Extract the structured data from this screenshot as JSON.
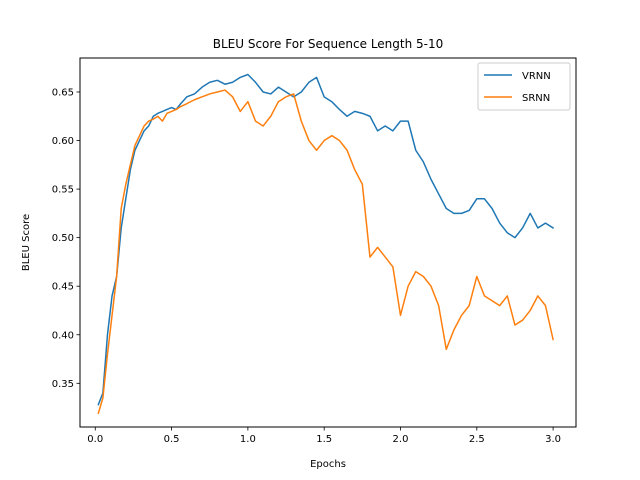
{
  "chart_data": {
    "type": "line",
    "title": "BLEU Score For Sequence Length 5-10",
    "xlabel": "Epochs",
    "ylabel": "BLEU Score",
    "xlim": [
      -0.1,
      3.15
    ],
    "ylim": [
      0.305,
      0.685
    ],
    "xticks": [
      0.0,
      0.5,
      1.0,
      1.5,
      2.0,
      2.5,
      3.0
    ],
    "xtick_labels": [
      "0.0",
      "0.5",
      "1.0",
      "1.5",
      "2.0",
      "2.5",
      "3.0"
    ],
    "yticks": [
      0.35,
      0.4,
      0.45,
      0.5,
      0.55,
      0.6,
      0.65
    ],
    "ytick_labels": [
      "0.35",
      "0.40",
      "0.45",
      "0.50",
      "0.55",
      "0.60",
      "0.65"
    ],
    "grid": false,
    "legend_position": "top-right",
    "series": [
      {
        "name": "VRNN",
        "color": "#1f77b4",
        "x": [
          0.02,
          0.05,
          0.08,
          0.11,
          0.14,
          0.17,
          0.2,
          0.23,
          0.26,
          0.29,
          0.32,
          0.35,
          0.38,
          0.41,
          0.44,
          0.47,
          0.5,
          0.53,
          0.56,
          0.6,
          0.65,
          0.7,
          0.75,
          0.8,
          0.85,
          0.9,
          0.95,
          1.0,
          1.05,
          1.1,
          1.15,
          1.2,
          1.25,
          1.3,
          1.35,
          1.4,
          1.45,
          1.5,
          1.55,
          1.6,
          1.65,
          1.7,
          1.75,
          1.8,
          1.85,
          1.9,
          1.95,
          2.0,
          2.05,
          2.1,
          2.15,
          2.2,
          2.25,
          2.3,
          2.35,
          2.4,
          2.45,
          2.5,
          2.55,
          2.6,
          2.65,
          2.7,
          2.75,
          2.8,
          2.85,
          2.9,
          2.95,
          3.0
        ],
        "values": [
          0.328,
          0.34,
          0.4,
          0.44,
          0.46,
          0.51,
          0.54,
          0.57,
          0.59,
          0.6,
          0.61,
          0.615,
          0.625,
          0.628,
          0.63,
          0.632,
          0.634,
          0.632,
          0.638,
          0.645,
          0.648,
          0.655,
          0.66,
          0.662,
          0.658,
          0.66,
          0.665,
          0.668,
          0.66,
          0.65,
          0.648,
          0.655,
          0.65,
          0.645,
          0.65,
          0.66,
          0.665,
          0.645,
          0.64,
          0.632,
          0.625,
          0.63,
          0.628,
          0.625,
          0.61,
          0.615,
          0.61,
          0.62,
          0.62,
          0.59,
          0.578,
          0.56,
          0.545,
          0.53,
          0.525,
          0.525,
          0.528,
          0.54,
          0.54,
          0.53,
          0.515,
          0.505,
          0.5,
          0.51,
          0.525,
          0.51,
          0.515,
          0.51
        ]
      },
      {
        "name": "SRNN",
        "color": "#ff7f0e",
        "x": [
          0.02,
          0.05,
          0.08,
          0.11,
          0.14,
          0.17,
          0.2,
          0.23,
          0.26,
          0.29,
          0.32,
          0.35,
          0.38,
          0.41,
          0.44,
          0.47,
          0.5,
          0.53,
          0.56,
          0.6,
          0.65,
          0.7,
          0.75,
          0.8,
          0.85,
          0.9,
          0.95,
          1.0,
          1.05,
          1.1,
          1.15,
          1.2,
          1.25,
          1.3,
          1.35,
          1.4,
          1.45,
          1.5,
          1.55,
          1.6,
          1.65,
          1.7,
          1.75,
          1.8,
          1.85,
          1.9,
          1.95,
          2.0,
          2.05,
          2.1,
          2.15,
          2.2,
          2.25,
          2.3,
          2.35,
          2.4,
          2.45,
          2.5,
          2.55,
          2.6,
          2.65,
          2.7,
          2.75,
          2.8,
          2.85,
          2.9,
          2.95,
          3.0
        ],
        "values": [
          0.319,
          0.335,
          0.38,
          0.42,
          0.46,
          0.53,
          0.555,
          0.575,
          0.595,
          0.605,
          0.615,
          0.62,
          0.622,
          0.625,
          0.62,
          0.628,
          0.63,
          0.632,
          0.635,
          0.638,
          0.642,
          0.645,
          0.648,
          0.65,
          0.652,
          0.645,
          0.63,
          0.64,
          0.62,
          0.615,
          0.625,
          0.64,
          0.645,
          0.648,
          0.62,
          0.6,
          0.59,
          0.6,
          0.605,
          0.6,
          0.59,
          0.57,
          0.555,
          0.48,
          0.49,
          0.48,
          0.47,
          0.42,
          0.45,
          0.465,
          0.46,
          0.45,
          0.43,
          0.385,
          0.405,
          0.42,
          0.43,
          0.46,
          0.44,
          0.435,
          0.43,
          0.44,
          0.41,
          0.415,
          0.425,
          0.44,
          0.43,
          0.395
        ]
      }
    ]
  }
}
